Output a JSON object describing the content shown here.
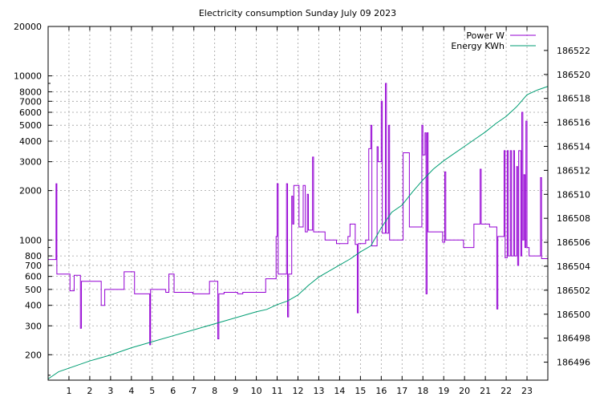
{
  "chart_data": {
    "type": "line",
    "title": "Electricity consumption Sunday July 09 2023",
    "grid": true,
    "legend_position": "top-right",
    "x": {
      "range": [
        0,
        24
      ],
      "ticks": [
        1,
        2,
        3,
        4,
        5,
        6,
        7,
        8,
        9,
        10,
        11,
        12,
        13,
        14,
        15,
        16,
        17,
        18,
        19,
        20,
        21,
        22,
        23
      ]
    },
    "y_left": {
      "scale": "log",
      "range": [
        140,
        20000
      ],
      "ticks": [
        200,
        300,
        400,
        500,
        600,
        700,
        800,
        1000,
        2000,
        3000,
        4000,
        5000,
        6000,
        7000,
        8000,
        10000,
        20000
      ]
    },
    "y_right": {
      "scale": "linear",
      "range": [
        186494.5,
        186524
      ],
      "ticks": [
        186496,
        186498,
        186500,
        186502,
        186504,
        186506,
        186508,
        186510,
        186512,
        186514,
        186516,
        186518,
        186520,
        186522
      ]
    },
    "series": [
      {
        "name": "Power W",
        "axis": "left",
        "color": "#9400d3",
        "step": true,
        "points": [
          [
            0,
            760
          ],
          [
            0.35,
            760
          ],
          [
            0.38,
            2200
          ],
          [
            0.42,
            620
          ],
          [
            0.55,
            620
          ],
          [
            0.9,
            620
          ],
          [
            1.05,
            490
          ],
          [
            1.2,
            490
          ],
          [
            1.25,
            610
          ],
          [
            1.45,
            610
          ],
          [
            1.55,
            290
          ],
          [
            1.6,
            560
          ],
          [
            2.5,
            560
          ],
          [
            2.55,
            400
          ],
          [
            2.7,
            400
          ],
          [
            2.72,
            500
          ],
          [
            3.6,
            500
          ],
          [
            3.65,
            640
          ],
          [
            4.1,
            640
          ],
          [
            4.15,
            470
          ],
          [
            4.85,
            470
          ],
          [
            4.88,
            230
          ],
          [
            4.92,
            500
          ],
          [
            5.6,
            500
          ],
          [
            5.65,
            480
          ],
          [
            5.75,
            480
          ],
          [
            5.8,
            620
          ],
          [
            5.95,
            620
          ],
          [
            6.05,
            480
          ],
          [
            6.9,
            480
          ],
          [
            6.95,
            470
          ],
          [
            7.6,
            470
          ],
          [
            7.75,
            560
          ],
          [
            8.1,
            560
          ],
          [
            8.15,
            250
          ],
          [
            8.2,
            470
          ],
          [
            8.3,
            470
          ],
          [
            8.45,
            480
          ],
          [
            8.8,
            480
          ],
          [
            9,
            480
          ],
          [
            9.1,
            470
          ],
          [
            9.3,
            470
          ],
          [
            9.35,
            480
          ],
          [
            10.4,
            480
          ],
          [
            10.45,
            580
          ],
          [
            10.9,
            580
          ],
          [
            10.95,
            1050
          ],
          [
            11,
            2200
          ],
          [
            11.05,
            620
          ],
          [
            11.4,
            620
          ],
          [
            11.45,
            2200
          ],
          [
            11.5,
            340
          ],
          [
            11.55,
            620
          ],
          [
            11.6,
            620
          ],
          [
            11.7,
            1850
          ],
          [
            11.75,
            1250
          ],
          [
            11.8,
            2150
          ],
          [
            12,
            2150
          ],
          [
            12.05,
            1200
          ],
          [
            12.15,
            1200
          ],
          [
            12.25,
            2150
          ],
          [
            12.35,
            1120
          ],
          [
            12.4,
            1120
          ],
          [
            12.45,
            1900
          ],
          [
            12.5,
            1150
          ],
          [
            12.6,
            1150
          ],
          [
            12.7,
            3200
          ],
          [
            12.75,
            1120
          ],
          [
            13.2,
            1120
          ],
          [
            13.3,
            1000
          ],
          [
            13.75,
            1000
          ],
          [
            13.85,
            950
          ],
          [
            14.3,
            950
          ],
          [
            14.4,
            1050
          ],
          [
            14.45,
            1050
          ],
          [
            14.5,
            1250
          ],
          [
            14.6,
            1250
          ],
          [
            14.75,
            940
          ],
          [
            14.85,
            360
          ],
          [
            14.9,
            950
          ],
          [
            15.2,
            950
          ],
          [
            15.25,
            1000
          ],
          [
            15.35,
            1000
          ],
          [
            15.4,
            3600
          ],
          [
            15.45,
            3600
          ],
          [
            15.5,
            5000
          ],
          [
            15.55,
            920
          ],
          [
            15.65,
            920
          ],
          [
            15.8,
            3700
          ],
          [
            15.85,
            3000
          ],
          [
            16,
            7000
          ],
          [
            16.05,
            1100
          ],
          [
            16.2,
            9000
          ],
          [
            16.25,
            1100
          ],
          [
            16.3,
            1100
          ],
          [
            16.35,
            5000
          ],
          [
            16.4,
            1000
          ],
          [
            16.5,
            1000
          ],
          [
            17,
            1000
          ],
          [
            17.05,
            3400
          ],
          [
            17.15,
            3400
          ],
          [
            17.3,
            3400
          ],
          [
            17.35,
            1200
          ],
          [
            17.9,
            1200
          ],
          [
            17.95,
            5000
          ],
          [
            18,
            3300
          ],
          [
            18.1,
            4500
          ],
          [
            18.15,
            470
          ],
          [
            18.2,
            4500
          ],
          [
            18.25,
            1120
          ],
          [
            18.9,
            1120
          ],
          [
            18.95,
            970
          ],
          [
            19.05,
            2600
          ],
          [
            19.1,
            1000
          ],
          [
            19.9,
            1000
          ],
          [
            19.95,
            900
          ],
          [
            20.4,
            900
          ],
          [
            20.45,
            1250
          ],
          [
            20.75,
            2700
          ],
          [
            20.8,
            1250
          ],
          [
            21.15,
            1250
          ],
          [
            21.2,
            1200
          ],
          [
            21.5,
            1200
          ],
          [
            21.55,
            380
          ],
          [
            21.6,
            1050
          ],
          [
            21.85,
            1050
          ],
          [
            21.9,
            3500
          ],
          [
            21.95,
            780
          ],
          [
            22.05,
            3500
          ],
          [
            22.1,
            800
          ],
          [
            22.2,
            3500
          ],
          [
            22.25,
            800
          ],
          [
            22.35,
            3500
          ],
          [
            22.4,
            800
          ],
          [
            22.5,
            2800
          ],
          [
            22.55,
            700
          ],
          [
            22.6,
            3500
          ],
          [
            22.7,
            800
          ],
          [
            22.75,
            6000
          ],
          [
            22.8,
            1000
          ],
          [
            22.85,
            2500
          ],
          [
            22.9,
            900
          ],
          [
            22.95,
            5300
          ],
          [
            23,
            900
          ],
          [
            23.1,
            800
          ],
          [
            23.6,
            800
          ],
          [
            23.65,
            2400
          ],
          [
            23.7,
            770
          ],
          [
            24,
            770
          ]
        ]
      },
      {
        "name": "Energy KWh",
        "axis": "right",
        "color": "#009e73",
        "step": false,
        "points": [
          [
            0,
            186494.6
          ],
          [
            0.5,
            186495.2
          ],
          [
            1,
            186495.5
          ],
          [
            2,
            186496.1
          ],
          [
            3,
            186496.6
          ],
          [
            4,
            186497.2
          ],
          [
            5,
            186497.7
          ],
          [
            6,
            186498.2
          ],
          [
            7,
            186498.7
          ],
          [
            8,
            186499.2
          ],
          [
            9,
            186499.7
          ],
          [
            10,
            186500.2
          ],
          [
            10.5,
            186500.4
          ],
          [
            11,
            186500.8
          ],
          [
            11.5,
            186501.1
          ],
          [
            12,
            186501.6
          ],
          [
            12.5,
            186502.4
          ],
          [
            13,
            186503.1
          ],
          [
            13.5,
            186503.6
          ],
          [
            14,
            186504.1
          ],
          [
            14.5,
            186504.6
          ],
          [
            15,
            186505.2
          ],
          [
            15.5,
            186505.7
          ],
          [
            16,
            186507.2
          ],
          [
            16.5,
            186508.5
          ],
          [
            17,
            186509.1
          ],
          [
            17.5,
            186510.2
          ],
          [
            18,
            186511.2
          ],
          [
            18.5,
            186512.1
          ],
          [
            19,
            186512.8
          ],
          [
            19.5,
            186513.4
          ],
          [
            20,
            186514
          ],
          [
            20.5,
            186514.6
          ],
          [
            21,
            186515.2
          ],
          [
            21.5,
            186515.9
          ],
          [
            22,
            186516.5
          ],
          [
            22.5,
            186517.3
          ],
          [
            23,
            186518.3
          ],
          [
            23.5,
            186518.7
          ],
          [
            24,
            186519
          ]
        ]
      }
    ]
  }
}
